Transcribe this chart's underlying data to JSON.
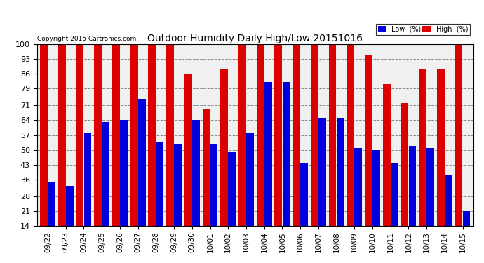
{
  "title": "Outdoor Humidity Daily High/Low 20151016",
  "copyright": "Copyright 2015 Cartronics.com",
  "legend_low": "Low  (%)",
  "legend_high": "High  (%)",
  "low_color": "#0000dd",
  "high_color": "#dd0000",
  "bg_color": "#ffffff",
  "plot_bg_color": "#f0f0f0",
  "grid_color": "#888888",
  "dates": [
    "09/22",
    "09/23",
    "09/24",
    "09/25",
    "09/26",
    "09/27",
    "09/28",
    "09/29",
    "09/30",
    "10/01",
    "10/02",
    "10/03",
    "10/04",
    "10/05",
    "10/06",
    "10/07",
    "10/08",
    "10/09",
    "10/10",
    "10/11",
    "10/12",
    "10/13",
    "10/14",
    "10/15"
  ],
  "high": [
    100,
    100,
    100,
    100,
    100,
    100,
    100,
    100,
    86,
    69,
    88,
    100,
    100,
    100,
    100,
    100,
    100,
    100,
    95,
    81,
    72,
    88,
    88,
    100
  ],
  "low": [
    35,
    33,
    58,
    63,
    64,
    74,
    54,
    53,
    64,
    53,
    49,
    58,
    82,
    82,
    44,
    65,
    65,
    51,
    50,
    44,
    52,
    51,
    38,
    21
  ],
  "ylim_min": 14,
  "ylim_max": 100,
  "yticks": [
    14,
    21,
    28,
    36,
    43,
    50,
    57,
    64,
    71,
    79,
    86,
    93,
    100
  ],
  "figwidth": 6.9,
  "figheight": 3.75,
  "dpi": 100
}
